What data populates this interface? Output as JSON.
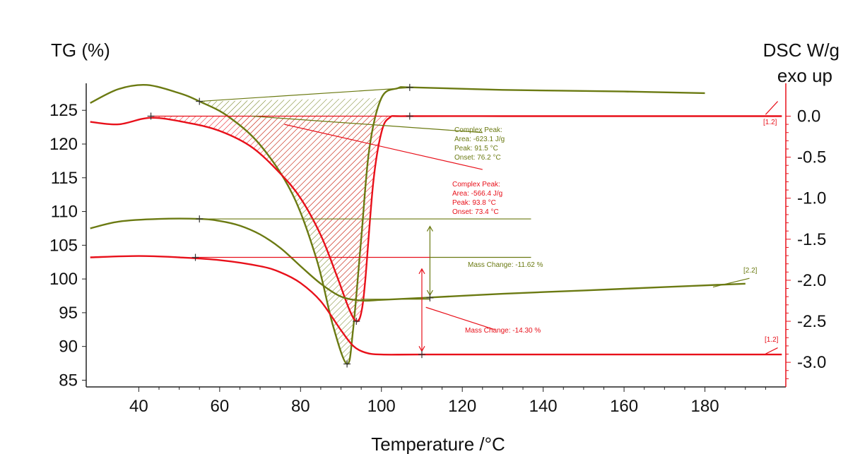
{
  "chart_data": {
    "type": "line",
    "title": "",
    "xlabel": "Temperature /°C",
    "ylabel_left": "TG (%)",
    "ylabel_right_line1": "DSC W/g",
    "ylabel_right_line2": "exo up",
    "xlim": [
      27,
      200
    ],
    "ylim_left": [
      84,
      129
    ],
    "ylim_right": [
      -3.3,
      0.4
    ],
    "x_ticks": [
      "40",
      "60",
      "80",
      "100",
      "120",
      "140",
      "160",
      "180"
    ],
    "y_left_ticks": [
      "125",
      "120",
      "115",
      "110",
      "105",
      "100",
      "95",
      "90",
      "85"
    ],
    "y_right_ticks": [
      "0.0",
      "-0.5",
      "-1.0",
      "-1.5",
      "-2.0",
      "-2.5",
      "-3.0"
    ],
    "series": [
      {
        "kind": "DSC",
        "color": "#6b7a12",
        "axis": "right",
        "x": [
          28,
          35,
          42,
          50,
          55,
          62,
          70,
          78,
          84,
          88,
          91.5,
          93,
          95,
          97,
          100,
          104,
          108,
          130,
          160,
          180
        ],
        "y": [
          0.16,
          0.33,
          0.38,
          0.28,
          0.18,
          0.0,
          -0.35,
          -0.95,
          -1.75,
          -2.55,
          -3.02,
          -2.6,
          -1.5,
          -0.4,
          0.22,
          0.34,
          0.35,
          0.32,
          0.3,
          0.28
        ]
      },
      {
        "kind": "DSC",
        "color": "#e8101a",
        "axis": "right",
        "x": [
          28,
          35,
          43,
          52,
          60,
          68,
          75,
          80,
          85,
          89,
          92,
          93.8,
          95,
          96,
          98,
          100,
          102,
          106,
          130,
          160,
          199
        ],
        "y": [
          -0.07,
          -0.1,
          -0.02,
          -0.08,
          -0.18,
          -0.38,
          -0.7,
          -1.0,
          -1.45,
          -1.95,
          -2.35,
          -2.5,
          -2.4,
          -2.0,
          -0.8,
          -0.2,
          -0.02,
          0.0,
          0.0,
          0.0,
          0.0
        ]
      },
      {
        "kind": "TG",
        "color": "#6b7a12",
        "axis": "left",
        "x": [
          28,
          35,
          45,
          55,
          60,
          65,
          70,
          75,
          80,
          85,
          90,
          95,
          100,
          110,
          130,
          150,
          170,
          190
        ],
        "y": [
          107.5,
          108.5,
          108.9,
          108.9,
          108.6,
          107.9,
          106.6,
          104.6,
          101.9,
          99.3,
          97.4,
          96.8,
          96.9,
          97.2,
          97.8,
          98.3,
          98.8,
          99.3
        ]
      },
      {
        "kind": "TG",
        "color": "#e8101a",
        "axis": "left",
        "x": [
          28,
          40,
          50,
          60,
          70,
          75,
          80,
          85,
          90,
          93,
          96,
          100,
          110,
          140,
          170,
          199
        ],
        "y": [
          103.2,
          103.4,
          103.2,
          102.8,
          101.9,
          101.0,
          99.4,
          96.7,
          92.4,
          90.1,
          89.1,
          88.8,
          88.8,
          88.8,
          88.8,
          88.8
        ]
      }
    ],
    "annotations": {
      "olive_peak": {
        "title": "Complex Peak:",
        "area": "Area:   -623.1 J/g",
        "peak": "Peak:     91.5 °C",
        "onset": "Onset:    76.2 °C"
      },
      "red_peak": {
        "title": "Complex Peak:",
        "area": "Area:   -566.4 J/g",
        "peak": "Peak:      93.8 °C",
        "onset": "Onset:    73.4 °C"
      },
      "olive_mass": "Mass Change: -11.62 %",
      "red_mass": "Mass Change: -14.30 %",
      "tag_olive_tg": "[2.2]",
      "tag_red_dsc": "[1.2]",
      "tag_red_tg": "[1.2]"
    }
  }
}
